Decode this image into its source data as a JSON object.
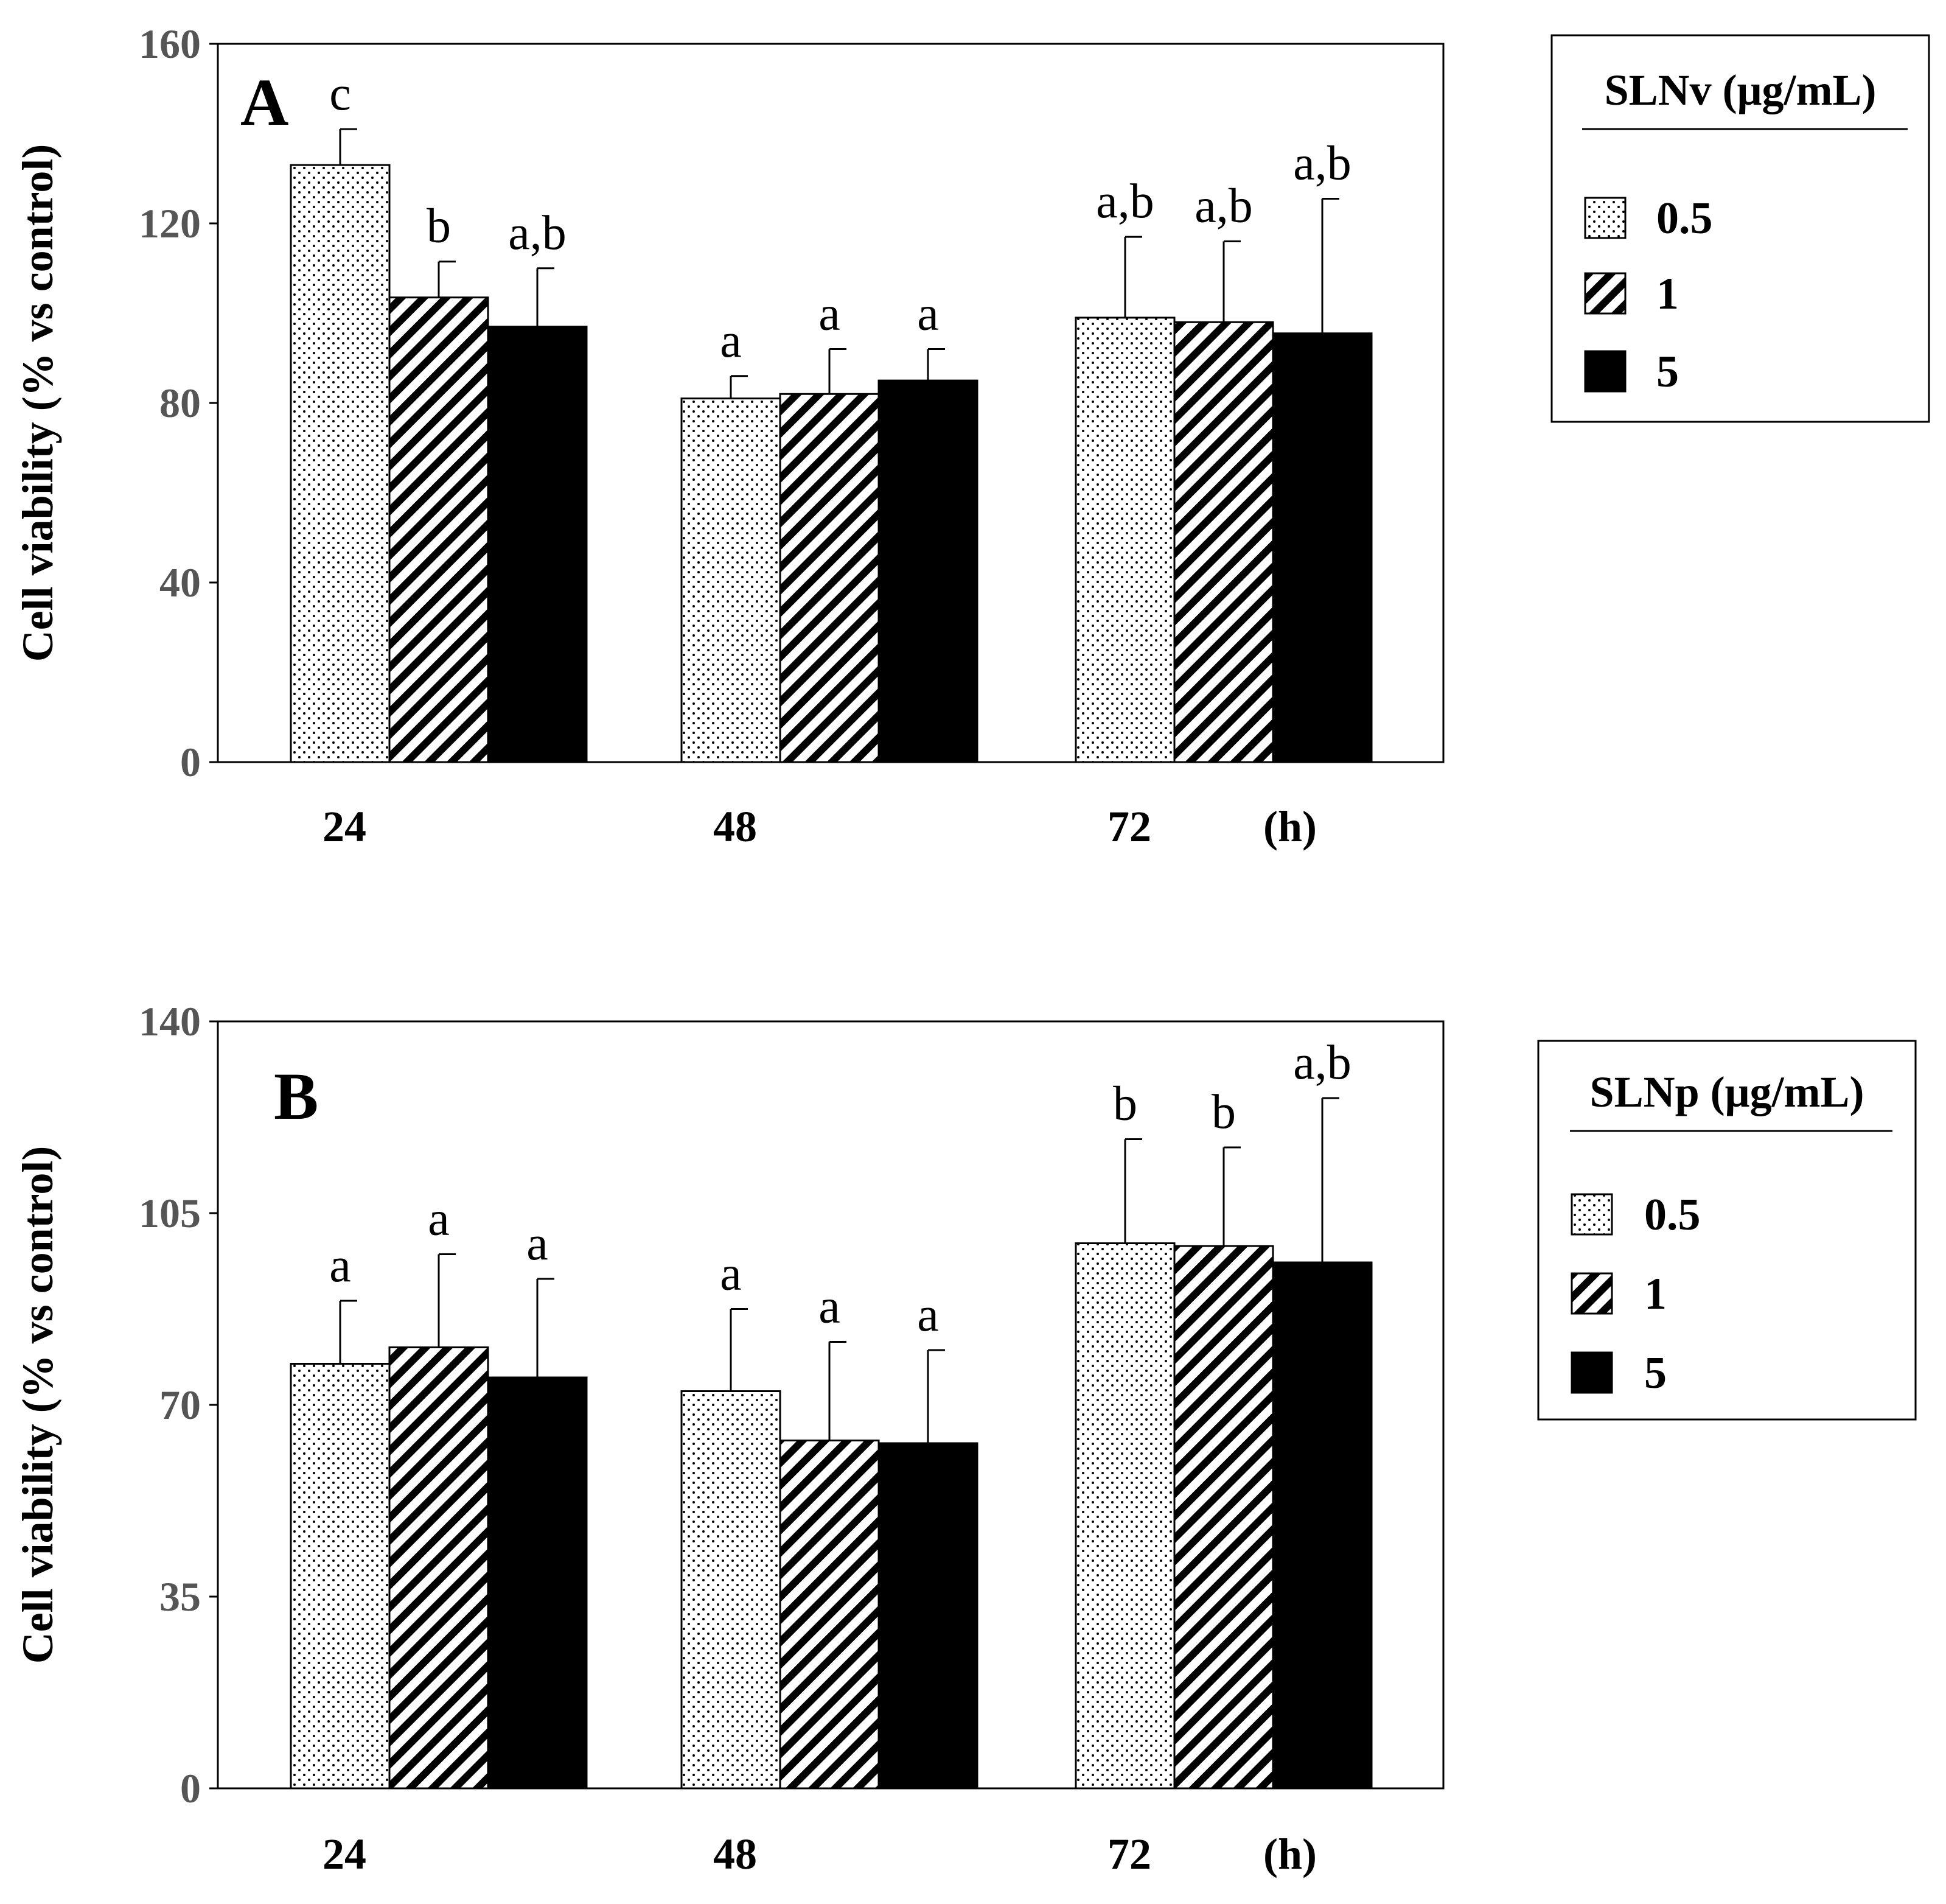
{
  "chart_data": [
    {
      "type": "bar",
      "panel_label": "A",
      "categories": [
        "24",
        "48",
        "72"
      ],
      "x_unit": "(h)",
      "ylabel": "Cell viability (% vs control)",
      "ylim": [
        0,
        160
      ],
      "yticks": [
        "0",
        "40",
        "80",
        "120",
        "160"
      ],
      "legend": {
        "title": "SLNv (μg/mL)",
        "placement": "right"
      },
      "series": [
        {
          "name": "0.5",
          "pattern": "dots",
          "values": [
            133,
            81,
            99
          ],
          "errors": [
            8,
            5,
            18
          ],
          "labels": [
            "c",
            "a",
            "a,b"
          ]
        },
        {
          "name": "1",
          "pattern": "hatch",
          "values": [
            103.5,
            82,
            98
          ],
          "errors": [
            8,
            10,
            18
          ],
          "labels": [
            "b",
            "a",
            "a,b"
          ]
        },
        {
          "name": "5",
          "pattern": "solid",
          "values": [
            97,
            85,
            95.5
          ],
          "errors": [
            13,
            7,
            30
          ],
          "labels": [
            "a,b",
            "a",
            "a,b"
          ]
        }
      ]
    },
    {
      "type": "bar",
      "panel_label": "B",
      "categories": [
        "24",
        "48",
        "72"
      ],
      "x_unit": "(h)",
      "ylabel": "Cell viability (% vs control)",
      "ylim": [
        0,
        140
      ],
      "yticks": [
        "0",
        "35",
        "70",
        "105",
        "140"
      ],
      "legend": {
        "title": "SLNp (μg/mL)",
        "placement": "right"
      },
      "series": [
        {
          "name": "0.5",
          "pattern": "dots",
          "values": [
            77.5,
            72.5,
            99.5
          ],
          "errors": [
            11.5,
            15,
            19
          ],
          "labels": [
            "a",
            "a",
            "b"
          ]
        },
        {
          "name": "1",
          "pattern": "hatch",
          "values": [
            80.5,
            63.5,
            99
          ],
          "errors": [
            17,
            18,
            18
          ],
          "labels": [
            "a",
            "a",
            "b"
          ]
        },
        {
          "name": "5",
          "pattern": "solid",
          "values": [
            75,
            63,
            96
          ],
          "errors": [
            18,
            17,
            30
          ],
          "labels": [
            "a",
            "a",
            "a,b"
          ]
        }
      ]
    }
  ]
}
